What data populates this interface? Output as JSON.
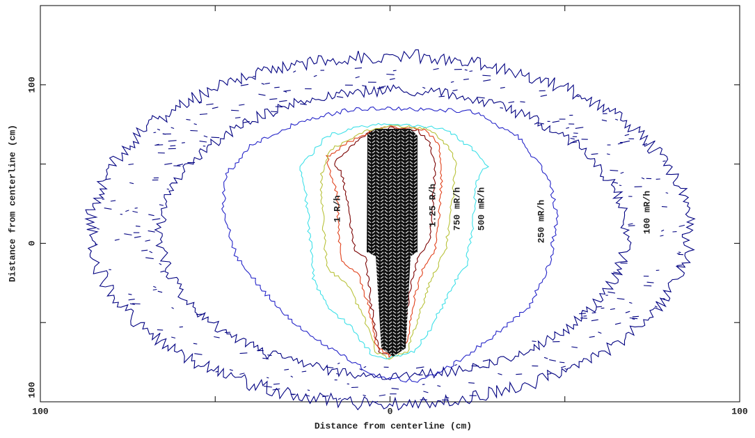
{
  "chart_data": {
    "type": "contour",
    "xlabel": "Distance from centerline (cm)",
    "ylabel": "Distance from centerline (cm)",
    "xlim": [
      -100,
      100
    ],
    "ylim": [
      -100,
      150
    ],
    "xticks": [
      {
        "value": -100,
        "label": "100"
      },
      0,
      {
        "value": 100,
        "label": "100"
      }
    ],
    "xminorticks": [
      -50,
      50
    ],
    "yticks": [
      {
        "value": -100,
        "label": "100"
      },
      0,
      100
    ],
    "yminorticks": [
      -50,
      50
    ],
    "contours": [
      {
        "label": "1.25 R/h",
        "color": "#7a0000"
      },
      {
        "label": "1 R/h",
        "color": "#e0401a"
      },
      {
        "label": "750 mR/h",
        "color": "#b8c23a"
      },
      {
        "label": "500 mR/h",
        "color": "#3ee0e8"
      },
      {
        "label": "250 mR/h",
        "color": "#2424c8"
      },
      {
        "label": "100 mR/h",
        "color": "#000080"
      }
    ]
  }
}
